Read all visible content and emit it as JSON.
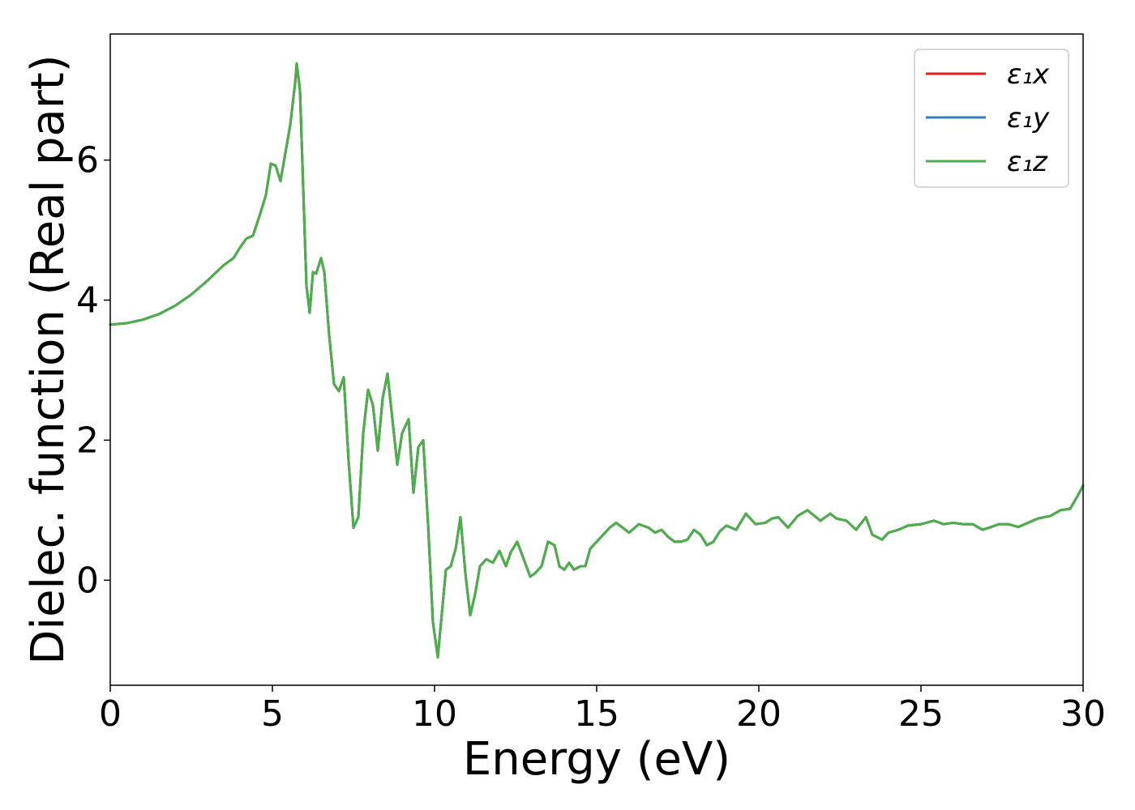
{
  "chart_data": {
    "type": "line",
    "title": "",
    "xlabel": "Energy (eV)",
    "ylabel": "Dielec. function (Real part)",
    "xlim": [
      0,
      30
    ],
    "ylim": [
      -1.5,
      7.8
    ],
    "xticks": [
      0,
      5,
      10,
      15,
      20,
      25,
      30
    ],
    "yticks": [
      0,
      2,
      4,
      6
    ],
    "xtick_labels": [
      "0",
      "5",
      "10",
      "15",
      "20",
      "25",
      "30"
    ],
    "ytick_labels": [
      "0",
      "2",
      "4",
      "6"
    ],
    "grid": false,
    "legend_position": "top-right",
    "x": [
      0,
      0.5,
      1.0,
      1.5,
      2.0,
      2.5,
      3.0,
      3.5,
      3.8,
      4.0,
      4.2,
      4.4,
      4.6,
      4.8,
      4.95,
      5.1,
      5.25,
      5.4,
      5.55,
      5.7,
      5.75,
      5.85,
      5.95,
      6.05,
      6.15,
      6.25,
      6.35,
      6.5,
      6.6,
      6.75,
      6.9,
      7.05,
      7.2,
      7.35,
      7.5,
      7.65,
      7.8,
      7.95,
      8.1,
      8.25,
      8.4,
      8.55,
      8.7,
      8.85,
      9.0,
      9.2,
      9.35,
      9.5,
      9.65,
      9.8,
      9.95,
      10.1,
      10.2,
      10.35,
      10.5,
      10.65,
      10.8,
      10.95,
      11.1,
      11.25,
      11.4,
      11.6,
      11.8,
      12.0,
      12.2,
      12.35,
      12.55,
      12.75,
      12.95,
      13.1,
      13.3,
      13.5,
      13.7,
      13.85,
      14.0,
      14.15,
      14.3,
      14.5,
      14.65,
      14.8,
      15.0,
      15.2,
      15.4,
      15.6,
      15.8,
      16.0,
      16.3,
      16.6,
      16.8,
      17.0,
      17.2,
      17.4,
      17.6,
      17.8,
      18.0,
      18.2,
      18.4,
      18.6,
      18.8,
      19.0,
      19.3,
      19.6,
      19.9,
      20.2,
      20.4,
      20.6,
      20.9,
      21.2,
      21.5,
      21.9,
      22.2,
      22.4,
      22.7,
      23.0,
      23.3,
      23.5,
      23.8,
      24.0,
      24.3,
      24.6,
      25.0,
      25.4,
      25.7,
      26.0,
      26.3,
      26.6,
      26.9,
      27.1,
      27.4,
      27.7,
      28.0,
      28.3,
      28.6,
      29.0,
      29.3,
      29.6,
      29.8,
      30.0
    ],
    "series": [
      {
        "name": "ε₁x",
        "color": "#e41a1c",
        "values": [
          3.65,
          3.67,
          3.72,
          3.8,
          3.92,
          4.08,
          4.28,
          4.5,
          4.6,
          4.75,
          4.88,
          4.92,
          5.2,
          5.5,
          5.95,
          5.92,
          5.7,
          6.1,
          6.5,
          7.1,
          7.38,
          7.0,
          5.6,
          4.2,
          3.82,
          4.4,
          4.38,
          4.6,
          4.4,
          3.5,
          2.8,
          2.7,
          2.9,
          1.7,
          0.75,
          0.9,
          2.1,
          2.72,
          2.5,
          1.85,
          2.6,
          2.95,
          2.3,
          1.65,
          2.1,
          2.3,
          1.25,
          1.9,
          2.0,
          0.8,
          -0.6,
          -1.1,
          -0.6,
          0.15,
          0.2,
          0.45,
          0.9,
          0.1,
          -0.5,
          -0.2,
          0.2,
          0.3,
          0.25,
          0.42,
          0.2,
          0.4,
          0.55,
          0.3,
          0.05,
          0.1,
          0.2,
          0.55,
          0.5,
          0.2,
          0.15,
          0.25,
          0.15,
          0.2,
          0.2,
          0.45,
          0.55,
          0.65,
          0.75,
          0.82,
          0.75,
          0.68,
          0.8,
          0.75,
          0.68,
          0.72,
          0.62,
          0.55,
          0.55,
          0.58,
          0.72,
          0.65,
          0.5,
          0.55,
          0.7,
          0.78,
          0.72,
          0.95,
          0.8,
          0.82,
          0.88,
          0.9,
          0.75,
          0.92,
          1.0,
          0.85,
          0.95,
          0.88,
          0.85,
          0.72,
          0.9,
          0.65,
          0.58,
          0.68,
          0.72,
          0.78,
          0.8,
          0.85,
          0.8,
          0.82,
          0.8,
          0.8,
          0.72,
          0.75,
          0.8,
          0.8,
          0.76,
          0.82,
          0.88,
          0.92,
          1.0,
          1.02,
          1.18,
          1.35
        ]
      },
      {
        "name": "ε₁y",
        "color": "#377eb8",
        "values": [
          3.65,
          3.67,
          3.72,
          3.8,
          3.92,
          4.08,
          4.28,
          4.5,
          4.6,
          4.75,
          4.88,
          4.92,
          5.2,
          5.5,
          5.95,
          5.92,
          5.7,
          6.1,
          6.5,
          7.1,
          7.38,
          7.0,
          5.6,
          4.2,
          3.82,
          4.4,
          4.38,
          4.6,
          4.4,
          3.5,
          2.8,
          2.7,
          2.9,
          1.7,
          0.75,
          0.9,
          2.1,
          2.72,
          2.5,
          1.85,
          2.6,
          2.95,
          2.3,
          1.65,
          2.1,
          2.3,
          1.25,
          1.9,
          2.0,
          0.8,
          -0.6,
          -1.1,
          -0.6,
          0.15,
          0.2,
          0.45,
          0.9,
          0.1,
          -0.5,
          -0.2,
          0.2,
          0.3,
          0.25,
          0.42,
          0.2,
          0.4,
          0.55,
          0.3,
          0.05,
          0.1,
          0.2,
          0.55,
          0.5,
          0.2,
          0.15,
          0.25,
          0.15,
          0.2,
          0.2,
          0.45,
          0.55,
          0.65,
          0.75,
          0.82,
          0.75,
          0.68,
          0.8,
          0.75,
          0.68,
          0.72,
          0.62,
          0.55,
          0.55,
          0.58,
          0.72,
          0.65,
          0.5,
          0.55,
          0.7,
          0.78,
          0.72,
          0.95,
          0.8,
          0.82,
          0.88,
          0.9,
          0.75,
          0.92,
          1.0,
          0.85,
          0.95,
          0.88,
          0.85,
          0.72,
          0.9,
          0.65,
          0.58,
          0.68,
          0.72,
          0.78,
          0.8,
          0.85,
          0.8,
          0.82,
          0.8,
          0.8,
          0.72,
          0.75,
          0.8,
          0.8,
          0.76,
          0.82,
          0.88,
          0.92,
          1.0,
          1.02,
          1.18,
          1.35
        ]
      },
      {
        "name": "ε₁z",
        "color": "#4daf4a",
        "values": [
          3.65,
          3.67,
          3.72,
          3.8,
          3.92,
          4.08,
          4.28,
          4.5,
          4.6,
          4.75,
          4.88,
          4.92,
          5.2,
          5.5,
          5.95,
          5.92,
          5.7,
          6.1,
          6.5,
          7.1,
          7.38,
          7.0,
          5.6,
          4.2,
          3.82,
          4.4,
          4.38,
          4.6,
          4.4,
          3.5,
          2.8,
          2.7,
          2.9,
          1.7,
          0.75,
          0.9,
          2.1,
          2.72,
          2.5,
          1.85,
          2.6,
          2.95,
          2.3,
          1.65,
          2.1,
          2.3,
          1.25,
          1.9,
          2.0,
          0.8,
          -0.6,
          -1.1,
          -0.6,
          0.15,
          0.2,
          0.45,
          0.9,
          0.1,
          -0.5,
          -0.2,
          0.2,
          0.3,
          0.25,
          0.42,
          0.2,
          0.4,
          0.55,
          0.3,
          0.05,
          0.1,
          0.2,
          0.55,
          0.5,
          0.2,
          0.15,
          0.25,
          0.15,
          0.2,
          0.2,
          0.45,
          0.55,
          0.65,
          0.75,
          0.82,
          0.75,
          0.68,
          0.8,
          0.75,
          0.68,
          0.72,
          0.62,
          0.55,
          0.55,
          0.58,
          0.72,
          0.65,
          0.5,
          0.55,
          0.7,
          0.78,
          0.72,
          0.95,
          0.8,
          0.82,
          0.88,
          0.9,
          0.75,
          0.92,
          1.0,
          0.85,
          0.95,
          0.88,
          0.85,
          0.72,
          0.9,
          0.65,
          0.58,
          0.68,
          0.72,
          0.78,
          0.8,
          0.85,
          0.8,
          0.82,
          0.8,
          0.8,
          0.72,
          0.75,
          0.8,
          0.8,
          0.76,
          0.82,
          0.88,
          0.92,
          1.0,
          1.02,
          1.18,
          1.35
        ]
      }
    ]
  }
}
